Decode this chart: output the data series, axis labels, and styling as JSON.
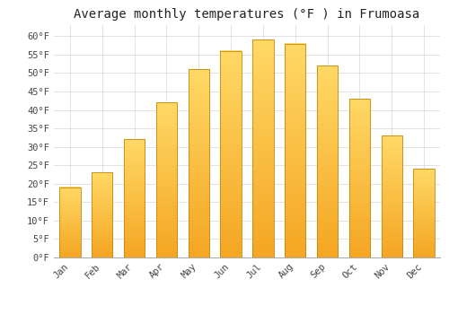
{
  "title": "Average monthly temperatures (°F ) in Frumoasa",
  "months": [
    "Jan",
    "Feb",
    "Mar",
    "Apr",
    "May",
    "Jun",
    "Jul",
    "Aug",
    "Sep",
    "Oct",
    "Nov",
    "Dec"
  ],
  "values": [
    19,
    23,
    32,
    42,
    51,
    56,
    59,
    58,
    52,
    43,
    33,
    24
  ],
  "bar_color_bottom": "#F5A623",
  "bar_color_top": "#FFD966",
  "bar_edge_color": "#C8860A",
  "background_color": "#FFFFFF",
  "plot_bg_color": "#FFFFFF",
  "grid_color": "#DDDDDD",
  "ylim": [
    0,
    63
  ],
  "yticks": [
    0,
    5,
    10,
    15,
    20,
    25,
    30,
    35,
    40,
    45,
    50,
    55,
    60
  ],
  "title_fontsize": 10,
  "tick_fontsize": 7.5,
  "font_family": "monospace"
}
